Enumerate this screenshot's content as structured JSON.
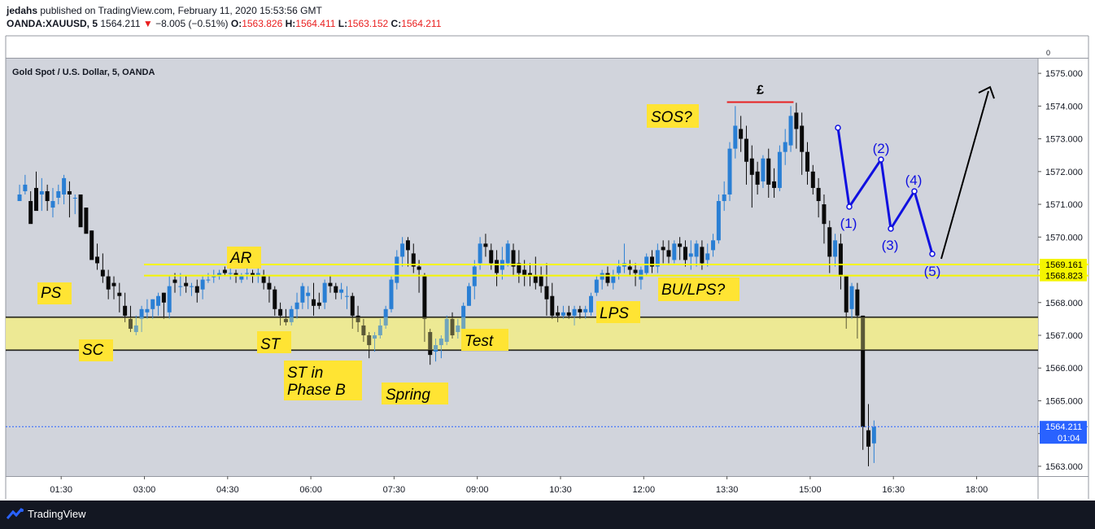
{
  "header": {
    "publisher": "jedahs",
    "published_text": "published on TradingView.com, February 11, 2020 15:53:56 GMT",
    "symbol": "OANDA:XAUUSD, 5",
    "last": "1564.211",
    "change": "−8.005 (−0.51%)",
    "o_label": "O:",
    "o_value": "1563.826",
    "h_label": "H:",
    "h_value": "1564.411",
    "l_label": "L:",
    "l_value": "1563.152",
    "c_label": "C:",
    "c_value": "1564.211"
  },
  "footer": {
    "brand": "TradingView"
  },
  "colors": {
    "bull": "#2a7fd4",
    "bear": "#0a0a0a",
    "zone": "#f0ec8c",
    "hline": "#f5f500",
    "wave": "#1010e0",
    "label_bg": "#ffe433",
    "red": "#e82020"
  },
  "chart_data": {
    "type": "candlestick",
    "title": "Gold Spot / U.S. Dollar, 5, OANDA",
    "x_ticks": [
      "01:30",
      "03:00",
      "04:30",
      "06:00",
      "07:30",
      "09:00",
      "10:30",
      "12:00",
      "13:30",
      "15:00",
      "16:30",
      "18:00"
    ],
    "y_ticks": [
      "1575.000",
      "1574.000",
      "1573.000",
      "1572.000",
      "1571.000",
      "1570.000",
      "1569.000",
      "1568.000",
      "1567.000",
      "1566.000",
      "1565.000",
      "1564.000",
      "1563.000"
    ],
    "ylim": [
      1562.7,
      1575.45
    ],
    "top_axis_label": "0",
    "price_marks": [
      {
        "label": "1569.161",
        "price": 1569.161
      },
      {
        "label": "1568.823",
        "price": 1568.823
      }
    ],
    "last_price": {
      "label": "1564.211",
      "price": 1564.211,
      "countdown": "01:04"
    },
    "zone": {
      "from": 1566.55,
      "to": 1567.55
    },
    "resistance_mark": {
      "symbol": "£",
      "price": 1574.12,
      "t_from": 13.5,
      "t_to": 14.7
    },
    "candles": [
      [
        0.75,
        1571.1,
        1571.6,
        1571.3,
        1571.1
      ],
      [
        0.85,
        1571.4,
        1571.9,
        1571.6,
        1571.3
      ],
      [
        0.95,
        1571.1,
        1570.7,
        1570.4,
        1571.4
      ],
      [
        1.05,
        1571.5,
        1572.0,
        1570.8,
        1571.3
      ],
      [
        1.15,
        1571.3,
        1571.8,
        1571.4,
        1570.8
      ],
      [
        1.25,
        1571.4,
        1571.6,
        1571.1,
        1570.8
      ],
      [
        1.35,
        1570.9,
        1571.5,
        1571.1,
        1570.6
      ],
      [
        1.45,
        1571.2,
        1571.6,
        1571.4,
        1571.0
      ],
      [
        1.55,
        1571.3,
        1571.9,
        1571.8,
        1571.0
      ],
      [
        1.65,
        1571.4,
        1571.7,
        1571.3,
        1570.6
      ],
      [
        1.75,
        1571.2,
        1571.3,
        1571.2,
        1570.7
      ],
      [
        1.85,
        1571.3,
        1571.2,
        1570.3,
        1571.2
      ],
      [
        1.95,
        1570.9,
        1570.4,
        1570.1,
        1570.9
      ],
      [
        2.05,
        1570.2,
        1570.1,
        1569.3,
        1570.2
      ],
      [
        2.15,
        1569.4,
        1569.8,
        1569.2,
        1569.0
      ],
      [
        2.25,
        1569.0,
        1569.5,
        1568.8,
        1568.6
      ],
      [
        2.35,
        1568.8,
        1569.0,
        1568.4,
        1568.1
      ],
      [
        2.45,
        1568.6,
        1568.8,
        1568.5,
        1568.1
      ],
      [
        2.55,
        1568.3,
        1568.6,
        1568.2,
        1567.7
      ],
      [
        2.65,
        1567.9,
        1568.3,
        1567.6,
        1567.4
      ],
      [
        2.75,
        1567.5,
        1567.9,
        1567.2,
        1567.1
      ],
      [
        2.85,
        1567.1,
        1567.6,
        1567.3,
        1567.0
      ],
      [
        2.95,
        1567.5,
        1567.9,
        1567.8,
        1567.1
      ],
      [
        3.05,
        1567.7,
        1568.1,
        1567.8,
        1567.5
      ],
      [
        3.15,
        1567.8,
        1568.1,
        1568.1,
        1567.5
      ],
      [
        3.25,
        1567.9,
        1568.3,
        1568.2,
        1567.6
      ],
      [
        3.35,
        1568.3,
        1568.3,
        1568.0,
        1567.5
      ],
      [
        3.45,
        1567.7,
        1568.8,
        1568.5,
        1567.5
      ],
      [
        3.55,
        1568.7,
        1568.9,
        1568.6,
        1568.3
      ],
      [
        3.65,
        1568.5,
        1568.9,
        1568.5,
        1568.2
      ],
      [
        3.75,
        1568.6,
        1568.8,
        1568.5,
        1568.3
      ],
      [
        3.85,
        1568.5,
        1568.6,
        1568.5,
        1568.2
      ],
      [
        3.95,
        1568.5,
        1568.7,
        1568.3,
        1568.0
      ],
      [
        4.05,
        1568.4,
        1568.8,
        1568.7,
        1568.1
      ],
      [
        4.15,
        1568.7,
        1568.9,
        1568.7,
        1568.6
      ],
      [
        4.25,
        1568.8,
        1569.0,
        1568.8,
        1568.6
      ],
      [
        4.35,
        1568.8,
        1569.0,
        1568.9,
        1568.7
      ],
      [
        4.45,
        1569.0,
        1569.1,
        1568.9,
        1568.8
      ],
      [
        4.55,
        1568.9,
        1569.1,
        1568.9,
        1568.7
      ],
      [
        4.65,
        1568.9,
        1569.0,
        1568.8,
        1568.6
      ],
      [
        4.75,
        1568.7,
        1568.9,
        1568.8,
        1568.6
      ],
      [
        4.85,
        1568.9,
        1569.2,
        1568.9,
        1568.7
      ],
      [
        4.95,
        1568.9,
        1569.0,
        1568.8,
        1568.6
      ],
      [
        5.05,
        1568.8,
        1569.1,
        1568.9,
        1568.6
      ],
      [
        5.15,
        1568.8,
        1569.0,
        1568.6,
        1568.4
      ],
      [
        5.25,
        1568.6,
        1568.8,
        1568.4,
        1568.0
      ],
      [
        5.35,
        1568.4,
        1568.5,
        1567.8,
        1567.6
      ],
      [
        5.45,
        1567.8,
        1568.0,
        1567.6,
        1567.3
      ],
      [
        5.55,
        1567.5,
        1567.8,
        1567.4,
        1567.3
      ],
      [
        5.65,
        1567.4,
        1567.9,
        1567.8,
        1567.3
      ],
      [
        5.75,
        1567.8,
        1568.3,
        1568.0,
        1567.5
      ],
      [
        5.85,
        1568.0,
        1568.6,
        1568.5,
        1567.8
      ],
      [
        5.95,
        1568.2,
        1568.5,
        1568.3,
        1567.8
      ],
      [
        6.05,
        1568.1,
        1568.6,
        1567.9,
        1567.6
      ],
      [
        6.15,
        1568.0,
        1568.3,
        1567.9,
        1567.8
      ],
      [
        6.25,
        1568.0,
        1568.7,
        1568.6,
        1567.8
      ],
      [
        6.35,
        1568.6,
        1568.8,
        1568.5,
        1568.3
      ],
      [
        6.45,
        1568.5,
        1568.6,
        1568.3,
        1568.1
      ],
      [
        6.55,
        1568.3,
        1568.6,
        1568.4,
        1568.1
      ],
      [
        6.65,
        1568.2,
        1568.5,
        1568.2,
        1567.8
      ],
      [
        6.75,
        1568.2,
        1568.3,
        1567.6,
        1567.2
      ],
      [
        6.85,
        1567.6,
        1567.9,
        1567.4,
        1567.1
      ],
      [
        6.95,
        1567.3,
        1567.5,
        1567.0,
        1566.8
      ],
      [
        7.05,
        1567.0,
        1567.1,
        1566.7,
        1566.3
      ],
      [
        7.15,
        1566.9,
        1567.1,
        1567.0,
        1566.5
      ],
      [
        7.25,
        1567.0,
        1567.5,
        1567.3,
        1566.9
      ],
      [
        7.35,
        1567.3,
        1567.9,
        1567.8,
        1567.2
      ],
      [
        7.45,
        1567.8,
        1568.8,
        1568.7,
        1567.7
      ],
      [
        7.55,
        1568.6,
        1569.6,
        1569.4,
        1568.4
      ],
      [
        7.65,
        1569.4,
        1570.0,
        1569.8,
        1569.1
      ],
      [
        7.75,
        1569.9,
        1570.0,
        1569.6,
        1569.1
      ],
      [
        7.85,
        1569.5,
        1569.8,
        1569.1,
        1568.9
      ],
      [
        7.95,
        1569.1,
        1569.3,
        1569.0,
        1568.3
      ],
      [
        8.05,
        1568.8,
        1568.9,
        1567.5,
        1566.8
      ],
      [
        8.15,
        1567.1,
        1567.2,
        1566.4,
        1566.1
      ],
      [
        8.25,
        1566.5,
        1566.9,
        1566.7,
        1566.2
      ],
      [
        8.35,
        1566.7,
        1567.0,
        1566.9,
        1566.3
      ],
      [
        8.45,
        1566.8,
        1567.6,
        1567.5,
        1566.7
      ],
      [
        8.55,
        1567.5,
        1567.7,
        1567.0,
        1566.9
      ],
      [
        8.65,
        1567.1,
        1567.5,
        1567.3,
        1566.9
      ],
      [
        8.75,
        1567.2,
        1568.0,
        1567.9,
        1567.0
      ],
      [
        8.85,
        1567.9,
        1568.6,
        1568.5,
        1567.9
      ],
      [
        8.95,
        1568.5,
        1569.3,
        1569.1,
        1568.1
      ],
      [
        9.05,
        1569.2,
        1570.0,
        1569.8,
        1569.0
      ],
      [
        9.15,
        1569.8,
        1570.1,
        1569.7,
        1569.4
      ],
      [
        9.25,
        1569.6,
        1569.8,
        1569.2,
        1569.0
      ],
      [
        9.35,
        1569.3,
        1569.6,
        1568.9,
        1568.5
      ],
      [
        9.45,
        1569.0,
        1569.7,
        1569.3,
        1568.7
      ],
      [
        9.55,
        1569.2,
        1569.9,
        1569.8,
        1569.1
      ],
      [
        9.65,
        1569.6,
        1569.8,
        1569.1,
        1568.8
      ],
      [
        9.75,
        1569.2,
        1569.6,
        1568.9,
        1568.6
      ],
      [
        9.85,
        1569.0,
        1569.3,
        1568.8,
        1568.5
      ],
      [
        9.95,
        1568.9,
        1569.2,
        1568.8,
        1568.5
      ],
      [
        10.05,
        1568.8,
        1569.4,
        1568.6,
        1568.4
      ],
      [
        10.15,
        1568.8,
        1569.1,
        1568.5,
        1568.3
      ],
      [
        10.25,
        1568.5,
        1569.2,
        1568.1,
        1567.6
      ],
      [
        10.35,
        1568.2,
        1568.6,
        1567.6,
        1567.5
      ],
      [
        10.45,
        1567.7,
        1567.9,
        1567.6,
        1567.4
      ],
      [
        10.55,
        1567.6,
        1567.9,
        1567.7,
        1567.5
      ],
      [
        10.65,
        1567.7,
        1567.9,
        1567.6,
        1567.5
      ],
      [
        10.75,
        1567.6,
        1567.9,
        1567.8,
        1567.3
      ],
      [
        10.85,
        1567.8,
        1567.9,
        1567.7,
        1567.5
      ],
      [
        10.95,
        1567.7,
        1567.9,
        1567.8,
        1567.5
      ],
      [
        11.05,
        1567.7,
        1568.3,
        1568.2,
        1567.6
      ],
      [
        11.15,
        1568.3,
        1568.8,
        1568.7,
        1568.2
      ],
      [
        11.25,
        1568.7,
        1569.0,
        1568.9,
        1568.4
      ],
      [
        11.35,
        1568.9,
        1569.1,
        1568.6,
        1568.5
      ],
      [
        11.45,
        1568.6,
        1569.0,
        1568.8,
        1568.4
      ],
      [
        11.55,
        1568.9,
        1569.3,
        1569.1,
        1568.7
      ],
      [
        11.65,
        1569.1,
        1569.8,
        1569.2,
        1568.9
      ],
      [
        11.75,
        1569.1,
        1569.3,
        1569.0,
        1568.8
      ],
      [
        11.85,
        1569.0,
        1569.2,
        1568.9,
        1568.5
      ],
      [
        11.95,
        1568.7,
        1569.1,
        1569.0,
        1568.4
      ],
      [
        12.05,
        1568.9,
        1569.5,
        1569.4,
        1568.8
      ],
      [
        12.15,
        1569.4,
        1569.6,
        1569.1,
        1568.9
      ],
      [
        12.25,
        1569.1,
        1569.8,
        1569.6,
        1568.9
      ],
      [
        12.35,
        1569.7,
        1569.9,
        1569.6,
        1569.2
      ],
      [
        12.45,
        1569.6,
        1569.9,
        1569.4,
        1569.2
      ],
      [
        12.55,
        1569.3,
        1569.9,
        1569.8,
        1569.2
      ],
      [
        12.65,
        1569.8,
        1570.0,
        1569.7,
        1569.3
      ],
      [
        12.75,
        1569.7,
        1569.9,
        1569.3,
        1569.1
      ],
      [
        12.85,
        1569.4,
        1569.9,
        1569.5,
        1569.0
      ],
      [
        12.95,
        1569.4,
        1569.9,
        1569.8,
        1569.1
      ],
      [
        13.05,
        1569.7,
        1569.9,
        1569.2,
        1569.0
      ],
      [
        13.15,
        1569.3,
        1569.8,
        1569.5,
        1569.1
      ],
      [
        13.25,
        1569.6,
        1570.1,
        1569.9,
        1569.4
      ],
      [
        13.35,
        1569.9,
        1571.3,
        1571.1,
        1569.8
      ],
      [
        13.45,
        1571.1,
        1571.7,
        1571.3,
        1570.8
      ],
      [
        13.55,
        1571.3,
        1572.9,
        1572.7,
        1571.1
      ],
      [
        13.65,
        1572.7,
        1574.0,
        1573.4,
        1572.4
      ],
      [
        13.75,
        1573.3,
        1573.7,
        1573.0,
        1572.6
      ],
      [
        13.85,
        1573.0,
        1573.4,
        1572.3,
        1571.6
      ],
      [
        13.95,
        1572.4,
        1572.8,
        1571.9,
        1570.9
      ],
      [
        14.05,
        1572.0,
        1572.3,
        1571.6,
        1571.3
      ],
      [
        14.15,
        1571.7,
        1572.5,
        1572.4,
        1571.5
      ],
      [
        14.25,
        1572.4,
        1572.7,
        1571.6,
        1571.2
      ],
      [
        14.35,
        1571.7,
        1572.1,
        1571.5,
        1571.2
      ],
      [
        14.45,
        1571.5,
        1572.8,
        1572.6,
        1571.4
      ],
      [
        14.55,
        1572.6,
        1573.3,
        1572.9,
        1572.2
      ],
      [
        14.65,
        1572.8,
        1574.0,
        1573.7,
        1572.6
      ],
      [
        14.75,
        1573.8,
        1574.1,
        1573.3,
        1572.7
      ],
      [
        14.85,
        1573.4,
        1573.8,
        1572.6,
        1571.9
      ],
      [
        14.95,
        1572.6,
        1572.9,
        1572.0,
        1571.6
      ],
      [
        15.05,
        1572.0,
        1572.2,
        1571.5,
        1571.3
      ],
      [
        15.15,
        1571.5,
        1571.8,
        1571.1,
        1570.6
      ],
      [
        15.25,
        1571.0,
        1571.3,
        1570.4,
        1569.8
      ],
      [
        15.35,
        1570.3,
        1570.5,
        1569.4,
        1568.9
      ],
      [
        15.45,
        1569.4,
        1570.1,
        1569.9,
        1569.1
      ],
      [
        15.55,
        1569.8,
        1570.1,
        1568.8,
        1568.4
      ],
      [
        15.65,
        1568.8,
        1568.8,
        1567.7,
        1567.2
      ],
      [
        15.75,
        1567.8,
        1568.6,
        1568.5,
        1567.5
      ],
      [
        15.85,
        1568.4,
        1568.6,
        1567.6,
        1566.9
      ],
      [
        15.95,
        1567.6,
        1567.6,
        1564.2,
        1563.5
      ],
      [
        16.05,
        1564.1,
        1564.9,
        1563.6,
        1563.0
      ],
      [
        16.15,
        1563.7,
        1564.4,
        1564.2,
        1563.1
      ]
    ]
  },
  "labels": [
    {
      "text": "PS"
    },
    {
      "text": "SC"
    },
    {
      "text": "AR"
    },
    {
      "text": "ST"
    },
    {
      "text": "ST in"
    },
    {
      "text": "Phase B"
    },
    {
      "text": "Spring"
    },
    {
      "text": "Test"
    },
    {
      "text": "LPS"
    },
    {
      "text": "BU/LPS?"
    },
    {
      "text": "SOS?"
    }
  ],
  "wave_labels": [
    "(1)",
    "(2)",
    "(3)",
    "(4)",
    "(5)"
  ]
}
